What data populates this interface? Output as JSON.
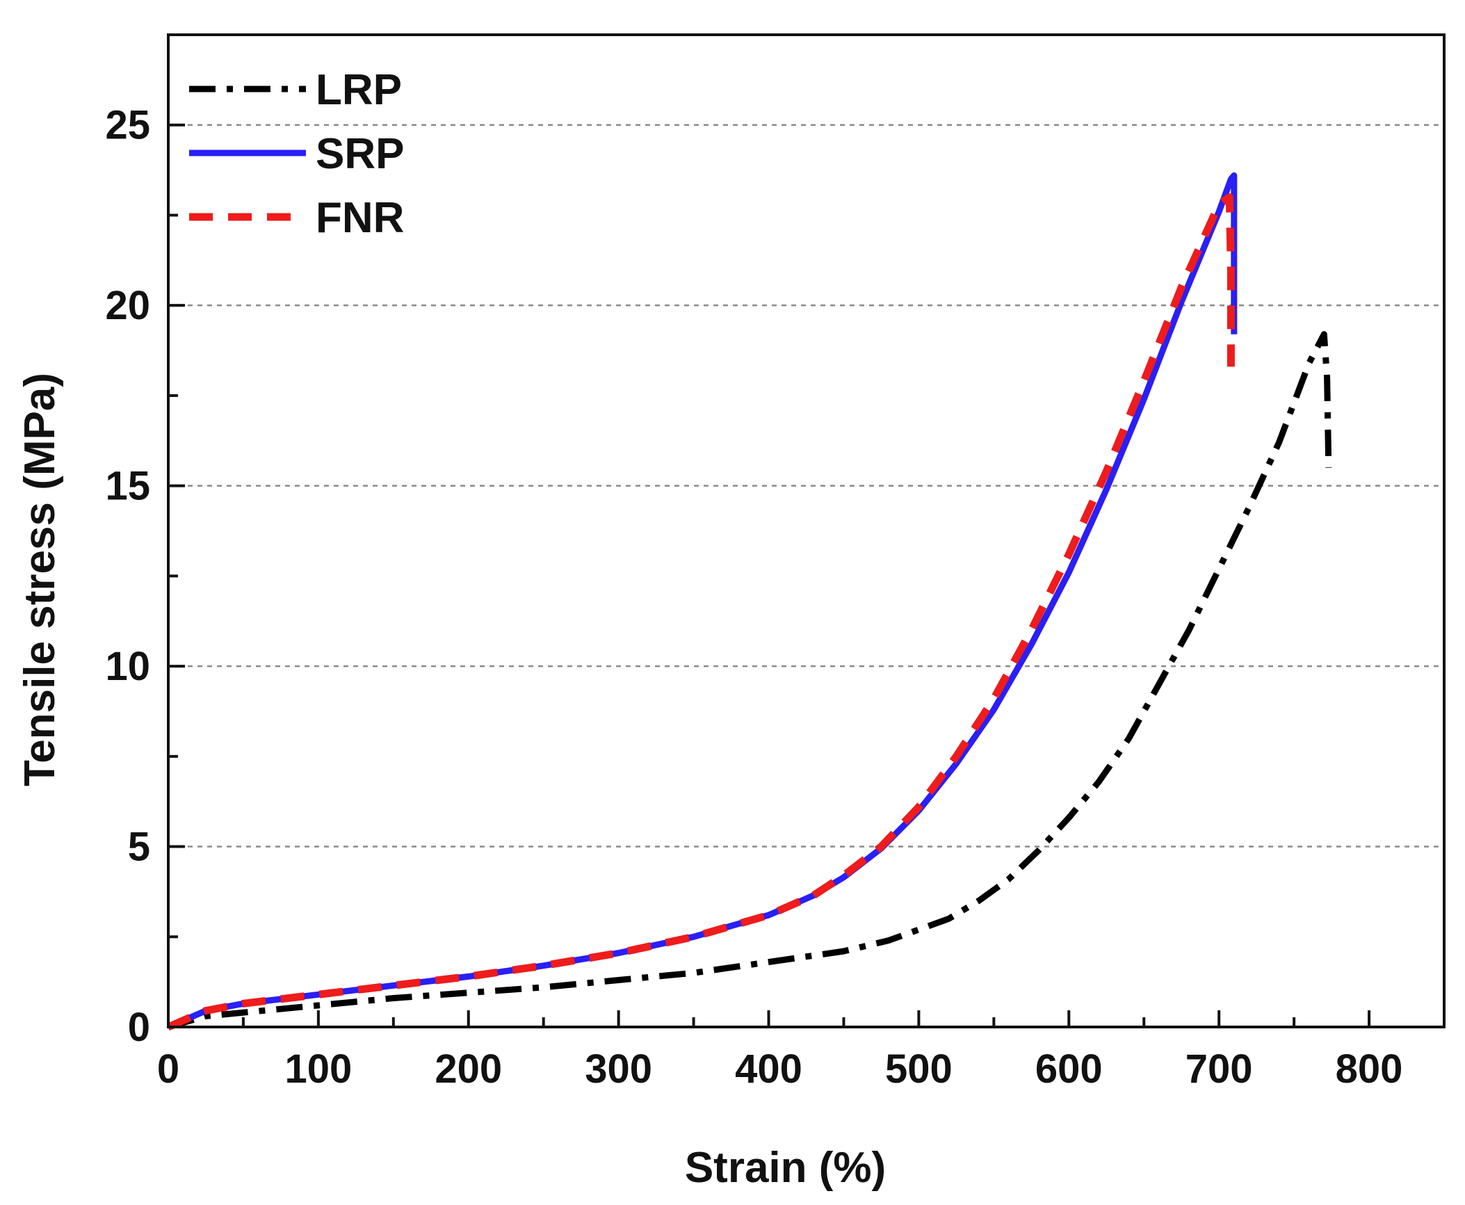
{
  "chart_data": {
    "type": "line",
    "title": "",
    "xlabel": "Strain (%)",
    "ylabel": "Tensile stress (MPa)",
    "xlim": [
      0,
      850
    ],
    "ylim": [
      0,
      27.5
    ],
    "x_ticks": [
      0,
      100,
      200,
      300,
      400,
      500,
      600,
      700,
      800
    ],
    "y_ticks": [
      0,
      5,
      10,
      15,
      20,
      25
    ],
    "y_gridlines": [
      5,
      10,
      15,
      20,
      25
    ],
    "grid": "horizontal dotted",
    "legend_position": "top-left",
    "series": [
      {
        "name": "LRP",
        "color": "#000000",
        "style": "dash-dot",
        "x": [
          0,
          25,
          50,
          100,
          150,
          200,
          250,
          300,
          350,
          400,
          450,
          480,
          500,
          520,
          540,
          560,
          580,
          600,
          620,
          640,
          660,
          680,
          700,
          720,
          740,
          760,
          770,
          772,
          773
        ],
        "y": [
          0,
          0.3,
          0.4,
          0.6,
          0.8,
          0.95,
          1.1,
          1.3,
          1.5,
          1.8,
          2.1,
          2.4,
          2.7,
          3.0,
          3.5,
          4.1,
          4.9,
          5.8,
          6.8,
          8.0,
          9.5,
          11.0,
          12.7,
          14.4,
          16.2,
          18.4,
          19.2,
          18.0,
          15.5
        ]
      },
      {
        "name": "SRP",
        "color": "#2a1ff5",
        "style": "solid",
        "x": [
          0,
          25,
          50,
          100,
          150,
          200,
          250,
          300,
          350,
          400,
          430,
          450,
          475,
          500,
          525,
          550,
          575,
          600,
          625,
          650,
          675,
          700,
          708,
          710,
          710
        ],
        "y": [
          0,
          0.45,
          0.65,
          0.9,
          1.15,
          1.4,
          1.7,
          2.05,
          2.5,
          3.1,
          3.65,
          4.15,
          4.95,
          6.0,
          7.3,
          8.8,
          10.6,
          12.6,
          14.9,
          17.4,
          20.1,
          22.6,
          23.5,
          23.6,
          19.2
        ]
      },
      {
        "name": "FNR",
        "color": "#ee1c1c",
        "style": "dashed",
        "x": [
          0,
          25,
          50,
          100,
          150,
          200,
          250,
          300,
          350,
          400,
          430,
          450,
          475,
          500,
          525,
          550,
          575,
          600,
          625,
          650,
          675,
          700,
          707,
          708,
          708
        ],
        "y": [
          0,
          0.45,
          0.65,
          0.9,
          1.15,
          1.4,
          1.7,
          2.05,
          2.5,
          3.1,
          3.65,
          4.2,
          5.0,
          6.1,
          7.5,
          9.1,
          11.0,
          13.1,
          15.4,
          17.9,
          20.5,
          22.8,
          23.0,
          21.0,
          18.3
        ]
      }
    ]
  }
}
